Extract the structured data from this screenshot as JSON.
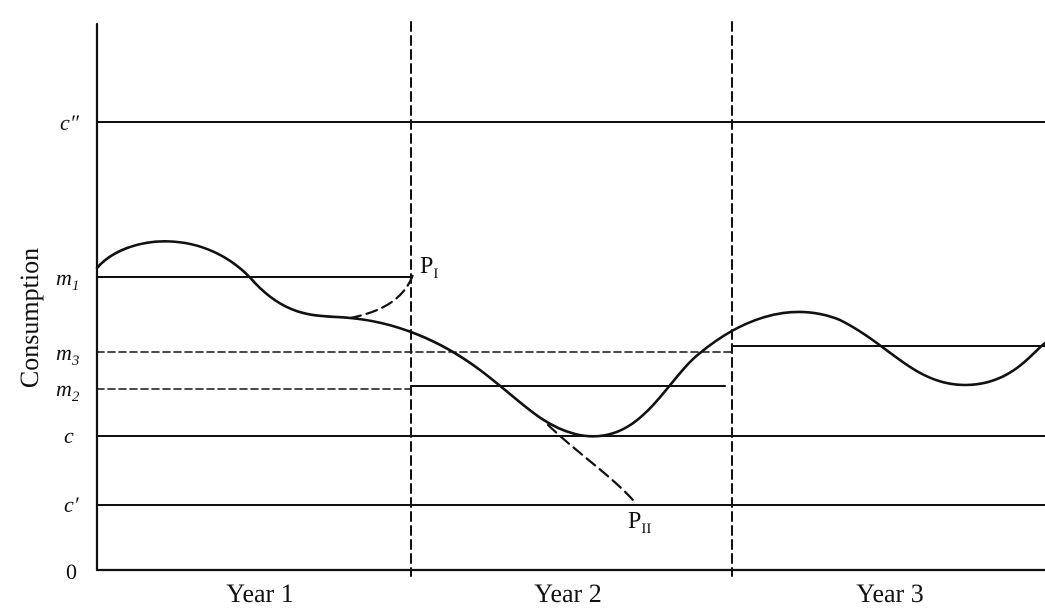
{
  "y_axis_label": "Consumption",
  "origin_label": "0",
  "levels": [
    {
      "id": "c_double_prime",
      "label": "c″"
    },
    {
      "id": "m1",
      "label": "m",
      "sub": "1"
    },
    {
      "id": "m3",
      "label": "m",
      "sub": "3"
    },
    {
      "id": "m2",
      "label": "m",
      "sub": "2"
    },
    {
      "id": "c",
      "label": "c"
    },
    {
      "id": "c_prime",
      "label": "c′"
    }
  ],
  "year_labels": [
    "Year 1",
    "Year 2",
    "Year 3"
  ],
  "points": [
    {
      "id": "PI",
      "label": "P",
      "sub": "I"
    },
    {
      "id": "PII",
      "label": "P",
      "sub": "II"
    }
  ],
  "colors": {
    "ink": "#111111",
    "background": "#ffffff"
  }
}
